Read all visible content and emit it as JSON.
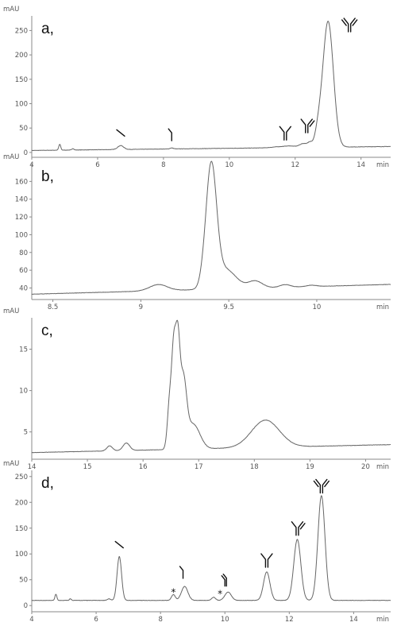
{
  "chart_data": [
    {
      "type": "line",
      "panel_label": "a,",
      "ylabel": "mAU",
      "xlabel": "min",
      "xlim": [
        4,
        14.9
      ],
      "ylim": [
        -10,
        280
      ],
      "x_ticks": [
        "4",
        "6",
        "8",
        "10",
        "12",
        "14"
      ],
      "y_ticks": [
        "0",
        "50",
        "100",
        "150",
        "200",
        "250"
      ],
      "baseline": 4,
      "baseline_slope": 0.75,
      "peaks": [
        {
          "x": 4.85,
          "h": 12,
          "w": 0.03
        },
        {
          "x": 5.25,
          "h": 3,
          "w": 0.03
        },
        {
          "x": 6.7,
          "h": 8,
          "w": 0.09
        },
        {
          "x": 8.25,
          "h": 2,
          "w": 0.05
        },
        {
          "x": 11.5,
          "h": 2,
          "w": 0.2
        },
        {
          "x": 11.85,
          "h": 3,
          "w": 0.15
        },
        {
          "x": 12.25,
          "h": 8,
          "w": 0.12
        },
        {
          "x": 12.45,
          "h": 8,
          "w": 0.07
        },
        {
          "x": 12.7,
          "h": 28,
          "w": 0.1
        },
        {
          "x": 13.0,
          "h": 258,
          "w": 0.16
        }
      ],
      "markers": [
        {
          "x": 6.7,
          "y": 40,
          "shape": "heavy-chain"
        },
        {
          "x": 8.25,
          "y": 37,
          "shape": "half-antibody"
        },
        {
          "x": 11.7,
          "y": 40,
          "shape": "antibody-without-light-chain"
        },
        {
          "x": 12.35,
          "y": 55,
          "shape": "antibody-missing-light-chain"
        },
        {
          "x": 13.65,
          "y": 262,
          "shape": "full-antibody"
        }
      ]
    },
    {
      "type": "line",
      "panel_label": "b,",
      "ylabel": "mAU",
      "xlabel": "min",
      "xlim": [
        8.38,
        10.42
      ],
      "ylim": [
        27,
        180
      ],
      "x_ticks": [
        "8.5",
        "9",
        "9.5",
        "10"
      ],
      "y_ticks": [
        "40",
        "60",
        "80",
        "100",
        "120",
        "140",
        "160"
      ],
      "baseline": 33,
      "baseline_slope": 5.4,
      "peaks": [
        {
          "x": 9.1,
          "h": 7,
          "w": 0.05
        },
        {
          "x": 9.35,
          "h": 4,
          "w": 0.018
        },
        {
          "x": 9.4,
          "h": 135,
          "w": 0.03
        },
        {
          "x": 9.48,
          "h": 22,
          "w": 0.06
        },
        {
          "x": 9.65,
          "h": 8,
          "w": 0.04
        },
        {
          "x": 9.82,
          "h": 3,
          "w": 0.03
        },
        {
          "x": 9.97,
          "h": 1.5,
          "w": 0.03
        }
      ]
    },
    {
      "type": "line",
      "panel_label": "c,",
      "ylabel": "mAU",
      "xlabel": "min",
      "xlim": [
        14,
        20.45
      ],
      "ylim": [
        1.7,
        18.8
      ],
      "x_ticks": [
        "14",
        "15",
        "16",
        "17",
        "18",
        "19",
        "20"
      ],
      "y_ticks": [
        "5",
        "10",
        "15"
      ],
      "baseline": 2.5,
      "baseline_slope": 0.15,
      "peaks": [
        {
          "x": 15.4,
          "h": 0.6,
          "w": 0.05
        },
        {
          "x": 15.7,
          "h": 0.9,
          "w": 0.06
        },
        {
          "x": 16.48,
          "h": 6,
          "w": 0.04
        },
        {
          "x": 16.55,
          "h": 10,
          "w": 0.035
        },
        {
          "x": 16.62,
          "h": 12,
          "w": 0.04
        },
        {
          "x": 16.72,
          "h": 8,
          "w": 0.06
        },
        {
          "x": 16.9,
          "h": 3,
          "w": 0.12
        },
        {
          "x": 18.2,
          "h": 3.3,
          "w": 0.25
        }
      ]
    },
    {
      "type": "line",
      "panel_label": "d,",
      "ylabel": "mAU",
      "xlabel": "min",
      "xlim": [
        4,
        15.15
      ],
      "ylim": [
        -12,
        262
      ],
      "x_ticks": [
        "4",
        "6",
        "8",
        "10",
        "12",
        "14"
      ],
      "y_ticks": [
        "0",
        "50",
        "100",
        "150",
        "200",
        "250"
      ],
      "baseline": 10,
      "baseline_slope": 0,
      "peaks": [
        {
          "x": 4.75,
          "h": 12,
          "w": 0.03
        },
        {
          "x": 5.2,
          "h": 3,
          "w": 0.03
        },
        {
          "x": 6.4,
          "h": 3,
          "w": 0.05
        },
        {
          "x": 6.72,
          "h": 85,
          "w": 0.07
        },
        {
          "x": 8.4,
          "h": 11,
          "w": 0.06
        },
        {
          "x": 8.75,
          "h": 27,
          "w": 0.1
        },
        {
          "x": 9.65,
          "h": 6,
          "w": 0.06
        },
        {
          "x": 10.1,
          "h": 16,
          "w": 0.1
        },
        {
          "x": 11.3,
          "h": 55,
          "w": 0.1
        },
        {
          "x": 12.25,
          "h": 118,
          "w": 0.11
        },
        {
          "x": 13.0,
          "h": 203,
          "w": 0.11
        }
      ],
      "markers": [
        {
          "x": 6.72,
          "y": 118,
          "shape": "heavy-chain"
        },
        {
          "x": 8.7,
          "y": 65,
          "shape": "half-antibody"
        },
        {
          "x": 8.4,
          "y": 26,
          "shape": "star"
        },
        {
          "x": 9.85,
          "y": 23,
          "shape": "star"
        },
        {
          "x": 10.05,
          "y": 50,
          "shape": "heavy-chain-dimer"
        },
        {
          "x": 11.3,
          "y": 88,
          "shape": "antibody-without-light-chain"
        },
        {
          "x": 12.25,
          "y": 150,
          "shape": "antibody-missing-light-chain"
        },
        {
          "x": 13.0,
          "y": 232,
          "shape": "full-antibody"
        }
      ]
    }
  ],
  "marker_symbols": {
    "star": "*"
  }
}
